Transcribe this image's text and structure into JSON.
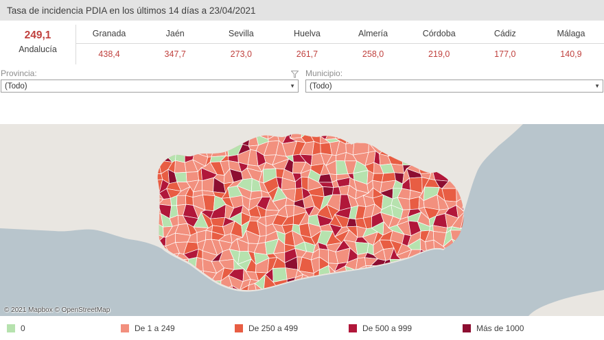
{
  "title": "Tasa de incidencia PDIA en los últimos 14 días a 23/04/2021",
  "summary": {
    "value": "249,1",
    "label": "Andalucía"
  },
  "provinces": [
    {
      "name": "Granada",
      "value": "438,4"
    },
    {
      "name": "Jaén",
      "value": "347,7"
    },
    {
      "name": "Sevilla",
      "value": "273,0"
    },
    {
      "name": "Huelva",
      "value": "261,7"
    },
    {
      "name": "Almería",
      "value": "258,0"
    },
    {
      "name": "Córdoba",
      "value": "219,0"
    },
    {
      "name": "Cádiz",
      "value": "177,0"
    },
    {
      "name": "Málaga",
      "value": "140,9"
    }
  ],
  "filters": {
    "provincia": {
      "label": "Provincia:",
      "value": "(Todo)"
    },
    "municipio": {
      "label": "Municipio:",
      "value": "(Todo)"
    }
  },
  "map": {
    "attribution": "© 2021 Mapbox © OpenStreetMap",
    "sea_color": "#b8c5cc",
    "land_color": "#e9e6e1"
  },
  "legend": {
    "items": [
      {
        "label": "0",
        "color": "#b6e2ae"
      },
      {
        "label": "De 1 a 249",
        "color": "#f2907e"
      },
      {
        "label": "De 250 a 499",
        "color": "#e85d43"
      },
      {
        "label": "De 500 a 999",
        "color": "#b1173a"
      },
      {
        "label": "Más de 1000",
        "color": "#8d0e31"
      }
    ]
  },
  "chart_data": {
    "type": "table",
    "title": "Tasa de incidencia PDIA en los últimos 14 días a 23/04/2021",
    "categories": [
      "Andalucía",
      "Granada",
      "Jaén",
      "Sevilla",
      "Huelva",
      "Almería",
      "Córdoba",
      "Cádiz",
      "Málaga"
    ],
    "values": [
      249.1,
      438.4,
      347.7,
      273.0,
      261.7,
      258.0,
      219.0,
      177.0,
      140.9
    ],
    "legend_bins": [
      "0",
      "De 1 a 249",
      "De 250 a 499",
      "De 500 a 999",
      "Más de 1000"
    ]
  }
}
